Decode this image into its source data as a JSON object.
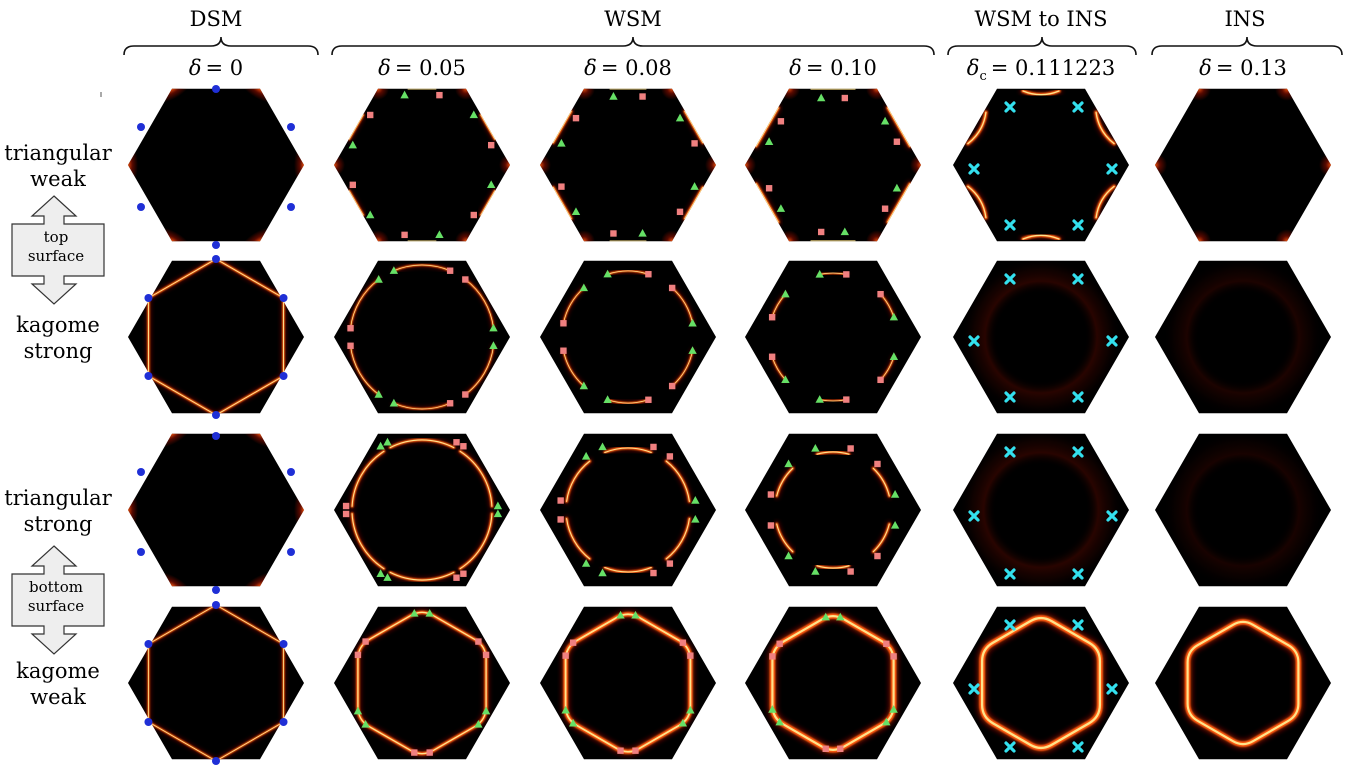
{
  "phases": [
    "DSM",
    "WSM",
    "WSM to INS",
    "INS"
  ],
  "columns": [
    {
      "delta_symbol": "δ",
      "subscript": "",
      "eq": "= 0"
    },
    {
      "delta_symbol": "δ",
      "subscript": "",
      "eq": "= 0.05"
    },
    {
      "delta_symbol": "δ",
      "subscript": "",
      "eq": "= 0.08"
    },
    {
      "delta_symbol": "δ",
      "subscript": "",
      "eq": "= 0.10"
    },
    {
      "delta_symbol": "δ",
      "subscript": "c",
      "eq": "= 0.111223"
    },
    {
      "delta_symbol": "δ",
      "subscript": "",
      "eq": "= 0.13"
    }
  ],
  "side_labels": {
    "row1": [
      "triangular",
      "weak"
    ],
    "row2": [
      "kagome",
      "strong"
    ],
    "row3": [
      "triangular",
      "strong"
    ],
    "row4": [
      "kagome",
      "weak"
    ],
    "top_box": [
      "top",
      "surface"
    ],
    "bottom_box": [
      "bottom",
      "surface"
    ]
  },
  "colors": {
    "background": "#000000",
    "dirac_point": "#1f2fd6",
    "square_marker": "#f08080",
    "triangle_marker": "#66e066",
    "cross_marker": "#33e0ee",
    "spectral_hot": "#ffe38a",
    "spectral_mid": "#ff5a10",
    "spectral_low": "#9b1000",
    "box_fill": "#eeeeee"
  },
  "icons": {
    "dirac_point": "blue-circle",
    "weyl_plus": "pink-square",
    "weyl_minus": "green-triangle",
    "transition_point": "cyan-cross"
  }
}
